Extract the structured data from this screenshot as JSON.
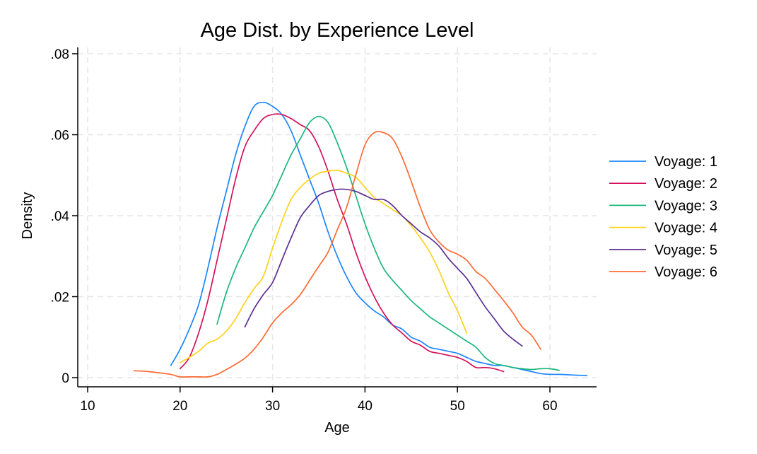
{
  "chart_data": {
    "type": "line",
    "title": "Age Dist. by Experience Level",
    "xlabel": "Age",
    "ylabel": "Density",
    "xlim": [
      10,
      65
    ],
    "ylim": [
      0,
      0.08
    ],
    "xticks": [
      10,
      20,
      30,
      40,
      50,
      60
    ],
    "xtick_labels": [
      "10",
      "20",
      "30",
      "40",
      "50",
      "60"
    ],
    "yticks": [
      0,
      0.02,
      0.04,
      0.06,
      0.08
    ],
    "ytick_labels": [
      "0",
      ".02",
      ".04",
      ".06",
      ".08"
    ],
    "grid": true,
    "legend_position": "right",
    "series": [
      {
        "name": "Voyage: 1",
        "color": "#1a85ff",
        "points": [
          [
            19,
            0.003
          ],
          [
            20,
            0.007
          ],
          [
            21,
            0.012
          ],
          [
            22,
            0.018
          ],
          [
            23,
            0.027
          ],
          [
            24,
            0.037
          ],
          [
            25,
            0.046
          ],
          [
            26,
            0.055
          ],
          [
            27,
            0.062
          ],
          [
            28,
            0.067
          ],
          [
            29,
            0.068
          ],
          [
            30,
            0.067
          ],
          [
            31,
            0.065
          ],
          [
            32,
            0.061
          ],
          [
            33,
            0.055
          ],
          [
            34,
            0.049
          ],
          [
            35,
            0.043
          ],
          [
            36,
            0.036
          ],
          [
            37,
            0.03
          ],
          [
            38,
            0.025
          ],
          [
            39,
            0.021
          ],
          [
            40,
            0.0185
          ],
          [
            41,
            0.0165
          ],
          [
            42,
            0.015
          ],
          [
            43,
            0.013
          ],
          [
            44,
            0.012
          ],
          [
            45,
            0.01
          ],
          [
            46,
            0.009
          ],
          [
            47,
            0.0075
          ],
          [
            48,
            0.007
          ],
          [
            49,
            0.0065
          ],
          [
            50,
            0.006
          ],
          [
            51,
            0.005
          ],
          [
            52,
            0.004
          ],
          [
            53,
            0.0035
          ],
          [
            54,
            0.003
          ],
          [
            55,
            0.003
          ],
          [
            56,
            0.0025
          ],
          [
            57,
            0.002
          ],
          [
            58,
            0.0015
          ],
          [
            59,
            0.001
          ],
          [
            60,
            0.0008
          ],
          [
            61,
            0.0008
          ],
          [
            62,
            0.0007
          ],
          [
            63,
            0.0006
          ],
          [
            64,
            0.0005
          ]
        ]
      },
      {
        "name": "Voyage: 2",
        "color": "#d41159",
        "points": [
          [
            20,
            0.0022
          ],
          [
            21,
            0.005
          ],
          [
            22,
            0.011
          ],
          [
            23,
            0.019
          ],
          [
            24,
            0.029
          ],
          [
            25,
            0.039
          ],
          [
            26,
            0.049
          ],
          [
            27,
            0.057
          ],
          [
            28,
            0.061
          ],
          [
            29,
            0.064
          ],
          [
            30,
            0.065
          ],
          [
            31,
            0.065
          ],
          [
            32,
            0.064
          ],
          [
            33,
            0.0625
          ],
          [
            34,
            0.061
          ],
          [
            35,
            0.057
          ],
          [
            36,
            0.051
          ],
          [
            37,
            0.044
          ],
          [
            38,
            0.038
          ],
          [
            39,
            0.031
          ],
          [
            40,
            0.025
          ],
          [
            41,
            0.02
          ],
          [
            42,
            0.016
          ],
          [
            43,
            0.013
          ],
          [
            44,
            0.011
          ],
          [
            45,
            0.009
          ],
          [
            46,
            0.008
          ],
          [
            47,
            0.0065
          ],
          [
            48,
            0.006
          ],
          [
            49,
            0.0055
          ],
          [
            50,
            0.005
          ],
          [
            51,
            0.004
          ],
          [
            52,
            0.0025
          ],
          [
            53,
            0.0025
          ],
          [
            54,
            0.0022
          ],
          [
            55,
            0.0015
          ]
        ]
      },
      {
        "name": "Voyage: 3",
        "color": "#1ab87a",
        "points": [
          [
            24,
            0.0132
          ],
          [
            25,
            0.021
          ],
          [
            26,
            0.027
          ],
          [
            27,
            0.032
          ],
          [
            28,
            0.037
          ],
          [
            29,
            0.041
          ],
          [
            30,
            0.045
          ],
          [
            31,
            0.05
          ],
          [
            32,
            0.055
          ],
          [
            33,
            0.059
          ],
          [
            34,
            0.063
          ],
          [
            35,
            0.0645
          ],
          [
            36,
            0.063
          ],
          [
            37,
            0.058
          ],
          [
            38,
            0.052
          ],
          [
            39,
            0.045
          ],
          [
            40,
            0.038
          ],
          [
            41,
            0.032
          ],
          [
            42,
            0.027
          ],
          [
            43,
            0.024
          ],
          [
            44,
            0.0215
          ],
          [
            45,
            0.019
          ],
          [
            46,
            0.017
          ],
          [
            47,
            0.015
          ],
          [
            48,
            0.0135
          ],
          [
            49,
            0.012
          ],
          [
            50,
            0.0105
          ],
          [
            51,
            0.009
          ],
          [
            52,
            0.0075
          ],
          [
            53,
            0.005
          ],
          [
            54,
            0.0035
          ],
          [
            55,
            0.003
          ],
          [
            56,
            0.0025
          ],
          [
            57,
            0.0022
          ],
          [
            58,
            0.002
          ],
          [
            59,
            0.0022
          ],
          [
            60,
            0.0022
          ],
          [
            61,
            0.0018
          ]
        ]
      },
      {
        "name": "Voyage: 4",
        "color": "#ffd21a",
        "points": [
          [
            20,
            0.0037
          ],
          [
            21,
            0.005
          ],
          [
            22,
            0.0065
          ],
          [
            23,
            0.0085
          ],
          [
            24,
            0.0095
          ],
          [
            25,
            0.0115
          ],
          [
            26,
            0.0145
          ],
          [
            27,
            0.0185
          ],
          [
            28,
            0.022
          ],
          [
            29,
            0.025
          ],
          [
            30,
            0.032
          ],
          [
            31,
            0.0385
          ],
          [
            32,
            0.044
          ],
          [
            33,
            0.047
          ],
          [
            34,
            0.049
          ],
          [
            35,
            0.0505
          ],
          [
            36,
            0.051
          ],
          [
            37,
            0.0512
          ],
          [
            38,
            0.0505
          ],
          [
            39,
            0.0495
          ],
          [
            40,
            0.047
          ],
          [
            41,
            0.0445
          ],
          [
            42,
            0.043
          ],
          [
            43,
            0.0415
          ],
          [
            44,
            0.04
          ],
          [
            45,
            0.0375
          ],
          [
            46,
            0.0345
          ],
          [
            47,
            0.031
          ],
          [
            48,
            0.0265
          ],
          [
            49,
            0.021
          ],
          [
            50,
            0.0165
          ],
          [
            51,
            0.011
          ]
        ]
      },
      {
        "name": "Voyage: 5",
        "color": "#5c2f91",
        "points": [
          [
            27,
            0.0125
          ],
          [
            28,
            0.017
          ],
          [
            29,
            0.0205
          ],
          [
            30,
            0.0235
          ],
          [
            31,
            0.029
          ],
          [
            32,
            0.0345
          ],
          [
            33,
            0.0395
          ],
          [
            34,
            0.0425
          ],
          [
            35,
            0.045
          ],
          [
            36,
            0.046
          ],
          [
            37,
            0.0465
          ],
          [
            38,
            0.0465
          ],
          [
            39,
            0.046
          ],
          [
            40,
            0.045
          ],
          [
            41,
            0.044
          ],
          [
            42,
            0.044
          ],
          [
            43,
            0.0425
          ],
          [
            44,
            0.04
          ],
          [
            45,
            0.038
          ],
          [
            46,
            0.036
          ],
          [
            47,
            0.0345
          ],
          [
            48,
            0.0325
          ],
          [
            49,
            0.0295
          ],
          [
            50,
            0.027
          ],
          [
            51,
            0.0245
          ],
          [
            52,
            0.021
          ],
          [
            53,
            0.0175
          ],
          [
            54,
            0.0145
          ],
          [
            55,
            0.0115
          ],
          [
            56,
            0.0095
          ],
          [
            57,
            0.0078
          ]
        ]
      },
      {
        "name": "Voyage: 6",
        "color": "#ff6a33",
        "points": [
          [
            15,
            0.0017
          ],
          [
            16,
            0.0016
          ],
          [
            17,
            0.0014
          ],
          [
            18,
            0.0011
          ],
          [
            19,
            0.0008
          ],
          [
            20,
            0.0002
          ],
          [
            21,
            0.0002
          ],
          [
            22,
            0.0002
          ],
          [
            23,
            0.0002
          ],
          [
            24,
            0.0008
          ],
          [
            25,
            0.002
          ],
          [
            26,
            0.0033
          ],
          [
            27,
            0.0048
          ],
          [
            28,
            0.007
          ],
          [
            29,
            0.01
          ],
          [
            30,
            0.0135
          ],
          [
            31,
            0.016
          ],
          [
            32,
            0.018
          ],
          [
            33,
            0.0205
          ],
          [
            34,
            0.024
          ],
          [
            35,
            0.0275
          ],
          [
            36,
            0.031
          ],
          [
            37,
            0.0365
          ],
          [
            38,
            0.042
          ],
          [
            39,
            0.05
          ],
          [
            40,
            0.0575
          ],
          [
            41,
            0.0605
          ],
          [
            42,
            0.0605
          ],
          [
            43,
            0.059
          ],
          [
            44,
            0.0545
          ],
          [
            45,
            0.0485
          ],
          [
            46,
            0.042
          ],
          [
            47,
            0.0365
          ],
          [
            48,
            0.0335
          ],
          [
            49,
            0.0315
          ],
          [
            50,
            0.0305
          ],
          [
            51,
            0.029
          ],
          [
            52,
            0.0262
          ],
          [
            53,
            0.0245
          ],
          [
            54,
            0.0218
          ],
          [
            55,
            0.019
          ],
          [
            56,
            0.016
          ],
          [
            57,
            0.0125
          ],
          [
            58,
            0.0105
          ],
          [
            59,
            0.007
          ]
        ]
      }
    ]
  }
}
